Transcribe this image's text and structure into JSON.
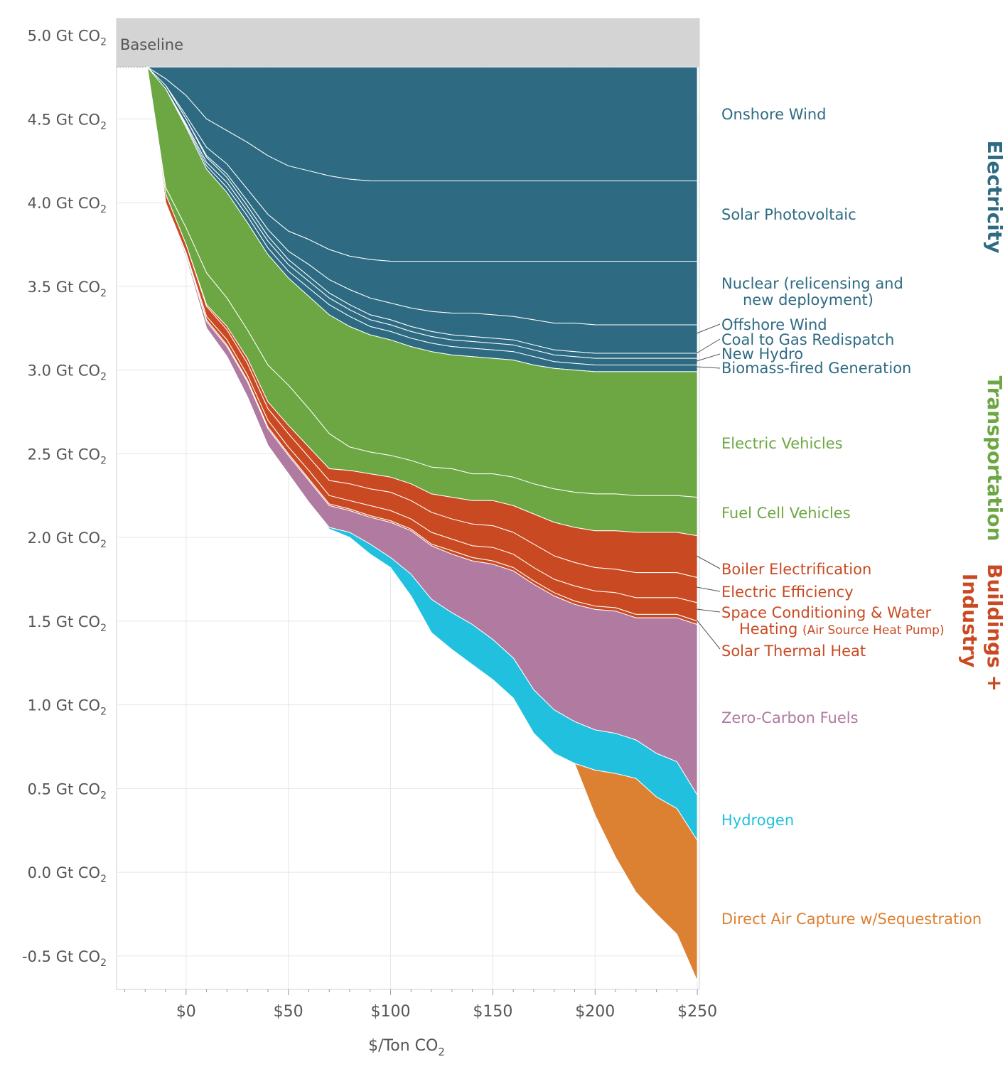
{
  "chart_data": {
    "type": "area",
    "baseline_label": "Baseline",
    "xlabel": "$/Ton CO",
    "xlabel_sub": "2",
    "x_ticks": [
      "$0",
      "$50",
      "$100",
      "$150",
      "$200",
      "$250"
    ],
    "x_tick_values": [
      0,
      50,
      100,
      150,
      200,
      250
    ],
    "y_tick_values": [
      5.0,
      4.5,
      4.0,
      3.5,
      3.0,
      2.5,
      2.0,
      1.5,
      1.0,
      0.5,
      0.0,
      -0.5
    ],
    "y_ticks": [
      "5.0 Gt CO",
      "4.5 Gt CO",
      "4.0 Gt CO",
      "3.5 Gt CO",
      "3.0 Gt CO",
      "2.5 Gt CO",
      "2.0 Gt CO",
      "1.5 Gt CO",
      "1.0 Gt CO",
      "0.5 Gt CO",
      "0.0 Gt CO",
      "-0.5 Gt CO"
    ],
    "y_tick_sub": "2",
    "xlim": [
      -34,
      251
    ],
    "ylim": [
      -0.7,
      5.1
    ],
    "baseline_value": 4.81,
    "baseline_start_x": -19,
    "groups": [
      {
        "name": "Electricity",
        "color": "#2e6b82"
      },
      {
        "name": "Transportation",
        "color": "#6ca743"
      },
      {
        "name": "Buildings + Industry",
        "color": "#c94a22"
      }
    ],
    "x": [
      -10,
      0,
      10,
      20,
      30,
      40,
      50,
      60,
      70,
      80,
      90,
      100,
      110,
      120,
      130,
      140,
      150,
      160,
      170,
      180,
      190,
      200,
      210,
      220,
      230,
      240,
      250
    ],
    "series": [
      {
        "name": "Onshore Wind",
        "color": "#2e6b82",
        "values": [
          0.07,
          0.17,
          0.31,
          0.38,
          0.45,
          0.53,
          0.59,
          0.62,
          0.65,
          0.67,
          0.68,
          0.68,
          0.68,
          0.68,
          0.68,
          0.68,
          0.68,
          0.68,
          0.68,
          0.68,
          0.68,
          0.68,
          0.68,
          0.68,
          0.68,
          0.68,
          0.68
        ]
      },
      {
        "name": "Solar Photovoltaic",
        "color": "#2e6b82",
        "values": [
          0.04,
          0.12,
          0.17,
          0.2,
          0.28,
          0.35,
          0.39,
          0.41,
          0.44,
          0.46,
          0.47,
          0.48,
          0.48,
          0.48,
          0.48,
          0.48,
          0.48,
          0.48,
          0.48,
          0.48,
          0.48,
          0.48,
          0.48,
          0.48,
          0.48,
          0.48,
          0.48
        ]
      },
      {
        "name": "Nuclear (relicensing and new deployment)",
        "color": "#2e6b82",
        "values": [
          0.0,
          0.02,
          0.05,
          0.06,
          0.07,
          0.09,
          0.12,
          0.15,
          0.18,
          0.2,
          0.23,
          0.25,
          0.28,
          0.3,
          0.31,
          0.31,
          0.32,
          0.33,
          0.35,
          0.37,
          0.37,
          0.38,
          0.38,
          0.38,
          0.38,
          0.38,
          0.38
        ]
      },
      {
        "name": "Offshore Wind",
        "color": "#2e6b82",
        "values": [
          0.0,
          0.0,
          0.01,
          0.02,
          0.03,
          0.04,
          0.05,
          0.07,
          0.08,
          0.09,
          0.1,
          0.1,
          0.11,
          0.12,
          0.13,
          0.14,
          0.14,
          0.14,
          0.15,
          0.16,
          0.17,
          0.17,
          0.17,
          0.17,
          0.17,
          0.17,
          0.17
        ]
      },
      {
        "name": "Coal to Gas Redispatch",
        "color": "#2e6b82",
        "values": [
          0.02,
          0.03,
          0.03,
          0.03,
          0.03,
          0.03,
          0.03,
          0.03,
          0.03,
          0.03,
          0.03,
          0.03,
          0.03,
          0.03,
          0.03,
          0.03,
          0.03,
          0.03,
          0.03,
          0.03,
          0.03,
          0.03,
          0.03,
          0.03,
          0.03,
          0.03,
          0.03
        ]
      },
      {
        "name": "New Hydro",
        "color": "#2e6b82",
        "values": [
          0.0,
          0.01,
          0.02,
          0.03,
          0.03,
          0.04,
          0.04,
          0.04,
          0.04,
          0.04,
          0.04,
          0.04,
          0.04,
          0.04,
          0.04,
          0.04,
          0.04,
          0.04,
          0.04,
          0.04,
          0.04,
          0.04,
          0.04,
          0.04,
          0.04,
          0.04,
          0.04
        ]
      },
      {
        "name": "Biomass-fired Generation",
        "color": "#2e6b82",
        "values": [
          0.0,
          0.01,
          0.02,
          0.03,
          0.04,
          0.04,
          0.04,
          0.05,
          0.06,
          0.06,
          0.05,
          0.05,
          0.05,
          0.05,
          0.05,
          0.05,
          0.05,
          0.05,
          0.05,
          0.04,
          0.04,
          0.04,
          0.04,
          0.04,
          0.04,
          0.04,
          0.04
        ]
      },
      {
        "name": "Electric Vehicles",
        "color": "#6ca743",
        "values": [
          0.59,
          0.6,
          0.62,
          0.63,
          0.64,
          0.66,
          0.64,
          0.67,
          0.71,
          0.72,
          0.7,
          0.69,
          0.68,
          0.69,
          0.68,
          0.7,
          0.69,
          0.7,
          0.71,
          0.72,
          0.73,
          0.73,
          0.73,
          0.74,
          0.74,
          0.74,
          0.75
        ]
      },
      {
        "name": "Fuel Cell Vehicles",
        "color": "#6ca743",
        "values": [
          0.04,
          0.1,
          0.19,
          0.17,
          0.17,
          0.22,
          0.24,
          0.23,
          0.21,
          0.14,
          0.13,
          0.13,
          0.14,
          0.16,
          0.17,
          0.16,
          0.16,
          0.17,
          0.18,
          0.2,
          0.21,
          0.22,
          0.22,
          0.22,
          0.22,
          0.22,
          0.23
        ]
      },
      {
        "name": "Boiler Electrification",
        "color": "#c94a22",
        "values": [
          0.0,
          0.0,
          0.01,
          0.02,
          0.03,
          0.04,
          0.05,
          0.06,
          0.07,
          0.08,
          0.09,
          0.09,
          0.1,
          0.11,
          0.13,
          0.14,
          0.15,
          0.16,
          0.18,
          0.2,
          0.21,
          0.22,
          0.23,
          0.24,
          0.24,
          0.24,
          0.25
        ]
      },
      {
        "name": "Electric Efficiency",
        "color": "#c94a22",
        "values": [
          0.05,
          0.05,
          0.06,
          0.06,
          0.07,
          0.07,
          0.08,
          0.08,
          0.09,
          0.1,
          0.1,
          0.11,
          0.11,
          0.12,
          0.12,
          0.13,
          0.13,
          0.13,
          0.14,
          0.14,
          0.14,
          0.14,
          0.14,
          0.15,
          0.15,
          0.15,
          0.15
        ]
      },
      {
        "name": "Space Conditioning & Water Heating (Air Source Heat Pump)",
        "color": "#c94a22",
        "values": [
          0.0,
          0.01,
          0.02,
          0.03,
          0.03,
          0.04,
          0.04,
          0.05,
          0.05,
          0.05,
          0.06,
          0.06,
          0.06,
          0.07,
          0.07,
          0.07,
          0.08,
          0.08,
          0.08,
          0.08,
          0.09,
          0.09,
          0.09,
          0.1,
          0.1,
          0.1,
          0.11
        ]
      },
      {
        "name": "Solar Thermal Heat",
        "color": "#c94a22",
        "values": [
          0.0,
          0.0,
          0.01,
          0.01,
          0.01,
          0.01,
          0.01,
          0.01,
          0.01,
          0.01,
          0.01,
          0.01,
          0.01,
          0.01,
          0.02,
          0.02,
          0.02,
          0.02,
          0.02,
          0.02,
          0.02,
          0.02,
          0.02,
          0.02,
          0.02,
          0.02,
          0.02
        ]
      },
      {
        "name": "Zero-Carbon Fuels",
        "color": "#b07aa1",
        "values": [
          0.0,
          0.02,
          0.04,
          0.06,
          0.09,
          0.1,
          0.11,
          0.13,
          0.13,
          0.13,
          0.16,
          0.21,
          0.26,
          0.32,
          0.35,
          0.38,
          0.45,
          0.52,
          0.63,
          0.68,
          0.7,
          0.72,
          0.73,
          0.73,
          0.81,
          0.86,
          1.02
        ]
      },
      {
        "name": "Hydrogen",
        "color": "#22c0df",
        "values": [
          0.0,
          0.0,
          0.0,
          0.0,
          0.0,
          0.0,
          0.0,
          0.0,
          0.01,
          0.03,
          0.06,
          0.06,
          0.13,
          0.2,
          0.22,
          0.24,
          0.24,
          0.24,
          0.26,
          0.26,
          0.25,
          0.24,
          0.24,
          0.23,
          0.26,
          0.28,
          0.27
        ]
      },
      {
        "name": "Direct Air Capture w/Sequestration",
        "color": "#dc8132",
        "values": [
          0.0,
          0.0,
          0.0,
          0.0,
          0.0,
          0.0,
          0.0,
          0.0,
          0.0,
          0.0,
          0.0,
          0.0,
          0.0,
          0.0,
          0.0,
          0.0,
          0.0,
          0.0,
          0.0,
          0.0,
          0.0,
          0.27,
          0.5,
          0.68,
          0.7,
          0.75,
          0.84
        ]
      }
    ]
  },
  "labels": {
    "onshore_wind": "Onshore Wind",
    "solar_pv": "Solar Photovoltaic",
    "nuclear_1": "Nuclear (relicensing and",
    "nuclear_2": "new deployment)",
    "offshore_wind": "Offshore Wind",
    "coal_to_gas": "Coal to Gas Redispatch",
    "new_hydro": "New Hydro",
    "biomass": "Biomass-fired Generation",
    "electric_vehicles": "Electric Vehicles",
    "fuel_cell": "Fuel Cell Vehicles",
    "boiler": "Boiler Electrification",
    "electric_efficiency": "Electric Efficiency",
    "space_cond_1": "Space Conditioning & Water",
    "space_cond_2": "Heating",
    "space_cond_3": "(Air Source Heat Pump)",
    "solar_thermal": "Solar Thermal Heat",
    "zero_carbon": "Zero-Carbon Fuels",
    "hydrogen": "Hydrogen",
    "dac": "Direct Air Capture w/Sequestration",
    "group_electricity": "Electricity",
    "group_transportation": "Transportation",
    "group_buildings_1": "Buildings +",
    "group_buildings_2": "Industry"
  }
}
